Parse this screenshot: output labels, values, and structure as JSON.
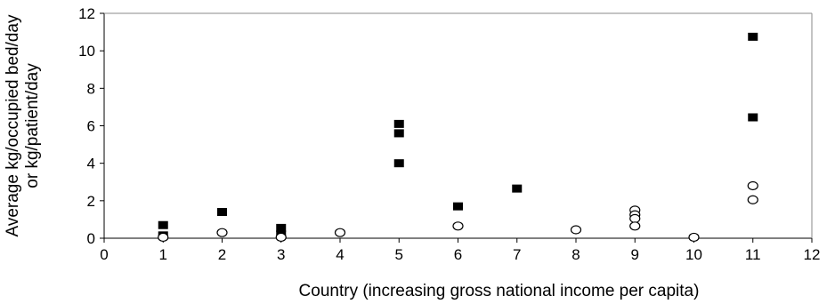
{
  "chart_data": {
    "type": "scatter",
    "title": "",
    "xlabel": "Country (increasing gross national income per capita)",
    "ylabel": [
      "Average kg/occupied bed/day",
      "or kg/patient/day"
    ],
    "xlim": [
      0,
      12
    ],
    "ylim": [
      0,
      12
    ],
    "xticks": [
      "0",
      "1",
      "2",
      "3",
      "4",
      "5",
      "6",
      "7",
      "8",
      "9",
      "10",
      "11",
      "12"
    ],
    "yticks": [
      "0",
      "2",
      "4",
      "6",
      "8",
      "10",
      "12"
    ],
    "grid": false,
    "legend": "none",
    "series": [
      {
        "marker": "filled-square",
        "color": "#000000",
        "points": [
          [
            1,
            0.7
          ],
          [
            1,
            0.15
          ],
          [
            2,
            1.4
          ],
          [
            3,
            0.55
          ],
          [
            3,
            0.2
          ],
          [
            5,
            6.1
          ],
          [
            5,
            5.6
          ],
          [
            5,
            4.0
          ],
          [
            6,
            1.7
          ],
          [
            7,
            2.65
          ],
          [
            11,
            10.75
          ],
          [
            11,
            6.45
          ]
        ]
      },
      {
        "marker": "open-circle",
        "color": "#000000",
        "points": [
          [
            1,
            0.05
          ],
          [
            2,
            0.3
          ],
          [
            3,
            0.05
          ],
          [
            4,
            0.3
          ],
          [
            6,
            0.65
          ],
          [
            8,
            0.45
          ],
          [
            9,
            1.5
          ],
          [
            9,
            1.25
          ],
          [
            9,
            1.05
          ],
          [
            9,
            0.65
          ],
          [
            10,
            0.05
          ],
          [
            11,
            2.8
          ],
          [
            11,
            2.05
          ]
        ]
      }
    ]
  }
}
